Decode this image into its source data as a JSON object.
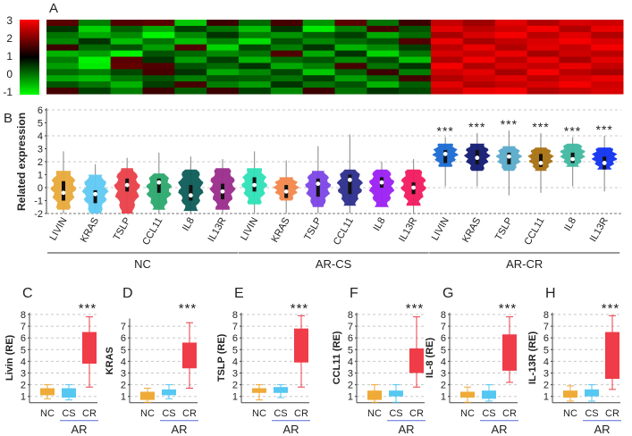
{
  "chart_data": [
    {
      "panel": "A",
      "type": "heatmap",
      "colorbar": {
        "ticks": [
          3,
          2,
          1,
          0,
          -1
        ],
        "colors": {
          "high": "#ff0000",
          "mid": "#000000",
          "low": "#00ff00"
        },
        "range": [
          -1,
          3
        ]
      },
      "column_groups": [
        "NC",
        "NC",
        "NC",
        "NC",
        "NC",
        "NC",
        "AR-CS",
        "AR-CS",
        "AR-CS",
        "AR-CS",
        "AR-CS",
        "AR-CS",
        "AR-CR",
        "AR-CR",
        "AR-CR",
        "AR-CR",
        "AR-CR",
        "AR-CR"
      ],
      "values": [
        [
          1.3,
          0.2,
          1.2,
          1.3,
          -0.5,
          1.0,
          0.4,
          1.1,
          0.0,
          1.3,
          0.3,
          1.0,
          2.4,
          2.0,
          2.7,
          2.2,
          2.6,
          2.5
        ],
        [
          0.9,
          -0.6,
          0.5,
          -0.2,
          0.8,
          0.3,
          -0.4,
          0.9,
          -0.8,
          0.2,
          1.1,
          0.6,
          2.7,
          2.3,
          2.5,
          2.9,
          2.2,
          2.8
        ],
        [
          0.3,
          -0.2,
          0.1,
          -0.9,
          0.1,
          0.9,
          0.2,
          0.0,
          0.5,
          0.8,
          -0.2,
          0.4,
          2.1,
          2.6,
          2.9,
          2.3,
          2.7,
          2.2
        ],
        [
          0.1,
          0.9,
          -0.4,
          0.3,
          -0.4,
          0.2,
          -0.7,
          0.6,
          0.1,
          0.4,
          0.6,
          1.2,
          2.8,
          2.1,
          2.4,
          2.6,
          2.9,
          2.6
        ],
        [
          1.0,
          0.4,
          0.6,
          -0.1,
          1.2,
          -0.6,
          0.7,
          0.2,
          0.9,
          -0.3,
          0.1,
          0.8,
          2.3,
          2.8,
          2.2,
          2.7,
          2.4,
          2.9
        ],
        [
          -0.3,
          -0.1,
          -0.9,
          0.6,
          0.4,
          0.1,
          0.3,
          1.2,
          -0.2,
          0.9,
          -0.6,
          0.3,
          2.6,
          2.4,
          2.8,
          2.1,
          2.5,
          2.3
        ],
        [
          0.2,
          -0.9,
          1.3,
          0.9,
          -0.1,
          0.8,
          -0.3,
          0.4,
          0.6,
          0.1,
          0.7,
          -0.4,
          2.2,
          2.9,
          2.3,
          2.8,
          2.1,
          2.7
        ],
        [
          -0.1,
          -0.8,
          1.4,
          1.2,
          0.6,
          0.4,
          0.9,
          -0.2,
          0.2,
          1.1,
          0.3,
          0.9,
          2.9,
          2.2,
          2.6,
          2.4,
          2.8,
          2.4
        ],
        [
          0.4,
          0.2,
          0.7,
          1.1,
          0.9,
          -0.2,
          0.1,
          0.7,
          -0.5,
          0.5,
          1.0,
          0.2,
          2.5,
          2.7,
          2.1,
          2.9,
          2.3,
          2.1
        ],
        [
          -0.2,
          -0.4,
          0.3,
          0.6,
          0.2,
          0.6,
          0.5,
          0.3,
          0.8,
          -0.1,
          0.4,
          1.1,
          2.2,
          2.5,
          2.7,
          2.3,
          2.6,
          2.8
        ],
        [
          0.6,
          0.3,
          -0.3,
          0.8,
          1.1,
          0.2,
          -0.1,
          0.9,
          0.3,
          0.6,
          -0.3,
          0.5,
          2.7,
          2.2,
          2.4,
          2.6,
          2.9,
          2.5
        ],
        [
          1.1,
          0.8,
          0.2,
          1.0,
          0.5,
          1.0,
          0.8,
          0.1,
          1.0,
          0.3,
          0.9,
          0.7,
          2.4,
          2.8,
          2.9,
          2.2,
          2.4,
          2.6
        ]
      ]
    },
    {
      "panel": "B",
      "type": "violin",
      "ylabel": "Related expression",
      "ylim": [
        -2,
        6
      ],
      "yticks": [
        -2,
        -1,
        0,
        1,
        2,
        3,
        4,
        5,
        6
      ],
      "grid": true,
      "groups": [
        {
          "name": "NC",
          "violins": [
            {
              "label": "LIVIN",
              "color": "#e9a93a",
              "median": -0.4,
              "q1": -1.0,
              "q3": 0.5,
              "body": [
                -1.7,
                1.3
              ],
              "whisker": [
                -2,
                2.8
              ],
              "sig": ""
            },
            {
              "label": "KRAS",
              "color": "#5fc9f2",
              "median": -0.5,
              "q1": -1.2,
              "q3": -0.2,
              "body": [
                -2,
                1.0
              ],
              "whisker": [
                -2,
                1.8
              ],
              "sig": ""
            },
            {
              "label": "TSLP",
              "color": "#ea3f49",
              "median": 0.2,
              "q1": -0.3,
              "q3": 0.7,
              "body": [
                -2,
                1.5
              ],
              "whisker": [
                -2,
                2.3
              ],
              "sig": ""
            },
            {
              "label": "CCL11",
              "color": "#2aa86c",
              "median": 0.4,
              "q1": -0.4,
              "q3": 0.7,
              "body": [
                -1.7,
                1.1
              ],
              "whisker": [
                -2,
                2.7
              ],
              "sig": ""
            },
            {
              "label": "IL8",
              "color": "#0c5c57",
              "median": -0.6,
              "q1": -1.0,
              "q3": 0.2,
              "body": [
                -1.8,
                1.4
              ],
              "whisker": [
                -2,
                2.4
              ],
              "sig": ""
            },
            {
              "label": "IL13R",
              "color": "#9a2b8c",
              "median": -0.3,
              "q1": -0.9,
              "q3": 0.3,
              "body": [
                -1.7,
                1.5
              ],
              "whisker": [
                -2,
                2.2
              ],
              "sig": ""
            }
          ]
        },
        {
          "name": "AR-CS",
          "violins": [
            {
              "label": "LIVIN",
              "color": "#2de0b6",
              "median": 0.2,
              "q1": -0.3,
              "q3": 0.8,
              "body": [
                -1.3,
                1.5
              ],
              "whisker": [
                -2,
                2.8
              ],
              "sig": ""
            },
            {
              "label": "KRAS",
              "color": "#f2874a",
              "median": -0.3,
              "q1": -0.8,
              "q3": 0.2,
              "body": [
                -1.0,
                0.8
              ],
              "whisker": [
                -2,
                2.1
              ],
              "sig": ""
            },
            {
              "label": "TSLP",
              "color": "#7b44e6",
              "median": 0.3,
              "q1": -0.7,
              "q3": 0.7,
              "body": [
                -1.5,
                1.3
              ],
              "whisker": [
                -2,
                3.2
              ],
              "sig": ""
            },
            {
              "label": "CCL11",
              "color": "#2b2d8c",
              "median": 0.6,
              "q1": -0.5,
              "q3": 1.0,
              "body": [
                -1.4,
                1.4
              ],
              "whisker": [
                -2,
                4.1
              ],
              "sig": ""
            },
            {
              "label": "IL8",
              "color": "#9b1ff2",
              "median": 0.4,
              "q1": 0.0,
              "q3": 0.8,
              "body": [
                -1.5,
                1.4
              ],
              "whisker": [
                -1.5,
                2.0
              ],
              "sig": ""
            },
            {
              "label": "IL13R",
              "color": "#f2195f",
              "median": 0.0,
              "q1": -0.5,
              "q3": 0.4,
              "body": [
                -1.4,
                1.4
              ],
              "whisker": [
                -2,
                2.2
              ],
              "sig": ""
            }
          ]
        },
        {
          "name": "AR-CR",
          "violins": [
            {
              "label": "LIVIN",
              "color": "#1a6ad2",
              "median": 2.6,
              "q1": 1.9,
              "q3": 2.9,
              "body": [
                1.6,
                3.4
              ],
              "whisker": [
                0.1,
                3.9
              ],
              "sig": "***"
            },
            {
              "label": "KRAS",
              "color": "#111a72",
              "median": 2.3,
              "q1": 1.8,
              "q3": 2.9,
              "body": [
                1.3,
                3.4
              ],
              "whisker": [
                0.1,
                4.2
              ],
              "sig": "***"
            },
            {
              "label": "TSLP",
              "color": "#5aaaca",
              "median": 2.4,
              "q1": 1.8,
              "q3": 2.7,
              "body": [
                1.3,
                3.2
              ],
              "whisker": [
                -0.6,
                4.4
              ],
              "sig": "***"
            },
            {
              "label": "CCL11",
              "color": "#a87112",
              "median": 1.9,
              "q1": 1.6,
              "q3": 2.6,
              "body": [
                1.3,
                3.1
              ],
              "whisker": [
                -0.4,
                4.2
              ],
              "sig": "***"
            },
            {
              "label": "IL8",
              "color": "#40b8a0",
              "median": 2.2,
              "q1": 1.9,
              "q3": 2.7,
              "body": [
                1.6,
                3.4
              ],
              "whisker": [
                0.1,
                3.9
              ],
              "sig": "***"
            },
            {
              "label": "IL13R",
              "color": "#1032f0",
              "median": 1.9,
              "q1": 1.4,
              "q3": 2.4,
              "body": [
                1.4,
                3.1
              ],
              "whisker": [
                -0.3,
                4.0
              ],
              "sig": "***"
            }
          ]
        }
      ]
    },
    {
      "panel": "C",
      "type": "box",
      "ylabel": "Livin (RE)",
      "ylim": [
        0,
        8
      ],
      "yticks": [
        1,
        2,
        3,
        4,
        5,
        6,
        7,
        8
      ],
      "categories": [
        "NC",
        "CS",
        "CR"
      ],
      "bracket": "AR",
      "sig": "***",
      "boxes": [
        {
          "q1": 1.1,
          "q3": 1.7,
          "min": 0.8,
          "max": 2.0,
          "color": "#efaa38"
        },
        {
          "q1": 0.9,
          "q3": 1.7,
          "min": 0.7,
          "max": 2.0,
          "color": "#55c8f2"
        },
        {
          "q1": 3.8,
          "q3": 6.5,
          "min": 1.8,
          "max": 7.8,
          "color": "#ef3c48"
        }
      ]
    },
    {
      "panel": "D",
      "type": "box",
      "ylabel": "KRAS",
      "ylim": [
        0,
        7.5
      ],
      "yticks": [
        1,
        2,
        3,
        4,
        5,
        6,
        7
      ],
      "categories": [
        "NC",
        "CS",
        "CR"
      ],
      "bracket": "AR",
      "sig": "***",
      "boxes": [
        {
          "q1": 0.7,
          "q3": 1.4,
          "min": 0.5,
          "max": 1.7,
          "color": "#efaa38"
        },
        {
          "q1": 1.1,
          "q3": 1.6,
          "min": 0.8,
          "max": 2.0,
          "color": "#55c8f2"
        },
        {
          "q1": 3.4,
          "q3": 5.6,
          "min": 1.7,
          "max": 7.3,
          "color": "#ef3c48"
        }
      ]
    },
    {
      "panel": "E",
      "type": "box",
      "ylabel": "TSLP (RE)",
      "ylim": [
        0,
        8
      ],
      "yticks": [
        1,
        2,
        3,
        4,
        5,
        6,
        7,
        8
      ],
      "categories": [
        "NC",
        "CS",
        "CR"
      ],
      "bracket": "AR",
      "sig": "***",
      "boxes": [
        {
          "q1": 1.3,
          "q3": 1.7,
          "min": 0.7,
          "max": 2.0,
          "color": "#efaa38"
        },
        {
          "q1": 1.3,
          "q3": 1.8,
          "min": 0.9,
          "max": 2.0,
          "color": "#55c8f2"
        },
        {
          "q1": 3.9,
          "q3": 6.8,
          "min": 1.8,
          "max": 7.9,
          "color": "#ef3c48"
        }
      ]
    },
    {
      "panel": "F",
      "type": "box",
      "ylabel": "CCL11 (RE)",
      "ylim": [
        0,
        8
      ],
      "yticks": [
        1,
        2,
        3,
        4,
        5,
        6,
        7,
        8
      ],
      "categories": [
        "NC",
        "CS",
        "CR"
      ],
      "bracket": "AR",
      "sig": "***",
      "boxes": [
        {
          "q1": 0.7,
          "q3": 1.5,
          "min": 0.5,
          "max": 2.0,
          "color": "#efaa38"
        },
        {
          "q1": 1.0,
          "q3": 1.5,
          "min": 0.5,
          "max": 2.0,
          "color": "#55c8f2"
        },
        {
          "q1": 3.0,
          "q3": 5.1,
          "min": 1.8,
          "max": 7.8,
          "color": "#ef3c48"
        }
      ]
    },
    {
      "panel": "G",
      "type": "box",
      "ylabel": "IL-8 (RE)",
      "ylim": [
        0,
        8
      ],
      "yticks": [
        1,
        2,
        3,
        4,
        5,
        6,
        7,
        8
      ],
      "categories": [
        "NC",
        "CS",
        "CR"
      ],
      "bracket": "AR",
      "sig": "***",
      "boxes": [
        {
          "q1": 0.9,
          "q3": 1.4,
          "min": 0.5,
          "max": 1.8,
          "color": "#efaa38"
        },
        {
          "q1": 0.8,
          "q3": 1.5,
          "min": 0.6,
          "max": 2.0,
          "color": "#55c8f2"
        },
        {
          "q1": 3.2,
          "q3": 6.3,
          "min": 2.2,
          "max": 7.8,
          "color": "#ef3c48"
        }
      ]
    },
    {
      "panel": "H",
      "type": "box",
      "ylabel": "IL-13R (RE)",
      "ylim": [
        0,
        8
      ],
      "yticks": [
        1,
        2,
        3,
        4,
        5,
        6,
        7,
        8
      ],
      "categories": [
        "NC",
        "CS",
        "CR"
      ],
      "bracket": "AR",
      "sig": "***",
      "boxes": [
        {
          "q1": 0.9,
          "q3": 1.5,
          "min": 0.6,
          "max": 1.9,
          "color": "#efaa38"
        },
        {
          "q1": 1.0,
          "q3": 1.6,
          "min": 0.6,
          "max": 2.0,
          "color": "#55c8f2"
        },
        {
          "q1": 2.5,
          "q3": 6.5,
          "min": 1.6,
          "max": 7.9,
          "color": "#ef3c48"
        }
      ]
    }
  ]
}
